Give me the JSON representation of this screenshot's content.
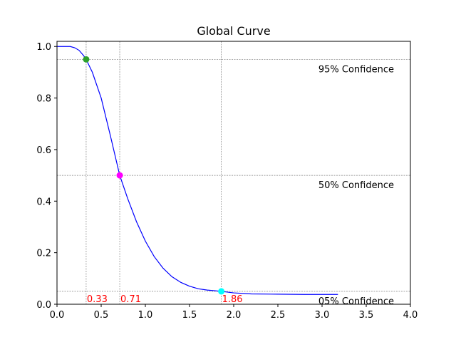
{
  "chart_data": {
    "type": "line",
    "title": "Global Curve",
    "xlabel": "",
    "ylabel": "",
    "xlim": [
      0.0,
      4.0
    ],
    "ylim": [
      0.0,
      1.02
    ],
    "xticks": [
      "0.0",
      "0.5",
      "1.0",
      "1.5",
      "2.0",
      "2.5",
      "3.0",
      "3.5",
      "4.0"
    ],
    "yticks": [
      "0.0",
      "0.2",
      "0.4",
      "0.6",
      "0.8",
      "1.0"
    ],
    "grid": false,
    "series": [
      {
        "color": "#0000ff",
        "x": [
          0.0,
          0.15,
          0.2,
          0.25,
          0.3,
          0.33,
          0.4,
          0.5,
          0.6,
          0.71,
          0.8,
          0.9,
          1.0,
          1.1,
          1.2,
          1.3,
          1.4,
          1.5,
          1.6,
          1.7,
          1.8,
          1.86,
          2.0,
          2.2,
          2.5,
          2.8,
          3.18
        ],
        "y": [
          1.0,
          1.0,
          0.995,
          0.985,
          0.965,
          0.95,
          0.9,
          0.8,
          0.66,
          0.5,
          0.41,
          0.32,
          0.245,
          0.185,
          0.14,
          0.107,
          0.085,
          0.07,
          0.06,
          0.055,
          0.052,
          0.05,
          0.044,
          0.04,
          0.039,
          0.038,
          0.038
        ]
      }
    ],
    "thresholds": [
      {
        "y": 0.95,
        "label": "95% Confidence",
        "x": 0.33,
        "x_label": "0.33",
        "marker_color": "#2ca02c"
      },
      {
        "y": 0.5,
        "label": "50% Confidence",
        "x": 0.71,
        "x_label": "0.71",
        "marker_color": "#ff00ff"
      },
      {
        "y": 0.05,
        "label": "05% Confidence",
        "x": 1.86,
        "x_label": "1.86",
        "marker_color": "#00ffff"
      }
    ],
    "reference_line_color": "#808080",
    "x_label_color": "#ff0000"
  }
}
